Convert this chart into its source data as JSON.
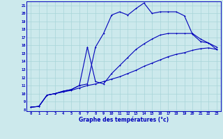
{
  "xlabel": "Graphe des températures (°c)",
  "xlim": [
    -0.5,
    23.5
  ],
  "ylim": [
    7.8,
    21.5
  ],
  "xticks": [
    0,
    1,
    2,
    3,
    4,
    5,
    6,
    7,
    8,
    9,
    10,
    11,
    12,
    13,
    14,
    15,
    16,
    17,
    18,
    19,
    20,
    21,
    22,
    23
  ],
  "yticks": [
    8,
    9,
    10,
    11,
    12,
    13,
    14,
    15,
    16,
    17,
    18,
    19,
    20,
    21
  ],
  "bg_color": "#cce9ec",
  "grid_color": "#a8d4d8",
  "line_color": "#0000bb",
  "line1_x": [
    0,
    1,
    2,
    3,
    4,
    5,
    6,
    7,
    8,
    9,
    10,
    11,
    12,
    13,
    14,
    15,
    16,
    17,
    18,
    19,
    20,
    21,
    22,
    23
  ],
  "line1_y": [
    8.3,
    8.4,
    9.8,
    10.0,
    10.3,
    10.5,
    11.0,
    11.2,
    15.8,
    17.5,
    19.8,
    20.2,
    19.8,
    20.6,
    21.3,
    20.0,
    20.2,
    20.2,
    20.2,
    19.7,
    17.4,
    16.5,
    16.3,
    15.5
  ],
  "line2_x": [
    0,
    1,
    2,
    3,
    4,
    5,
    6,
    7,
    8,
    9,
    10,
    11,
    12,
    13,
    14,
    15,
    16,
    17,
    18,
    19,
    20,
    21,
    22,
    23
  ],
  "line2_y": [
    8.3,
    8.4,
    9.8,
    10.0,
    10.3,
    10.5,
    11.0,
    15.8,
    11.5,
    11.2,
    12.5,
    13.5,
    14.5,
    15.5,
    16.2,
    16.8,
    17.3,
    17.5,
    17.5,
    17.5,
    17.5,
    16.8,
    16.3,
    15.8
  ],
  "line3_x": [
    0,
    1,
    2,
    3,
    4,
    5,
    6,
    7,
    8,
    9,
    10,
    11,
    12,
    13,
    14,
    15,
    16,
    17,
    18,
    19,
    20,
    21,
    22,
    23
  ],
  "line3_y": [
    8.3,
    8.4,
    9.8,
    10.0,
    10.2,
    10.4,
    10.7,
    11.0,
    11.2,
    11.5,
    11.8,
    12.1,
    12.5,
    12.9,
    13.4,
    13.8,
    14.2,
    14.6,
    14.9,
    15.1,
    15.4,
    15.6,
    15.7,
    15.5
  ]
}
